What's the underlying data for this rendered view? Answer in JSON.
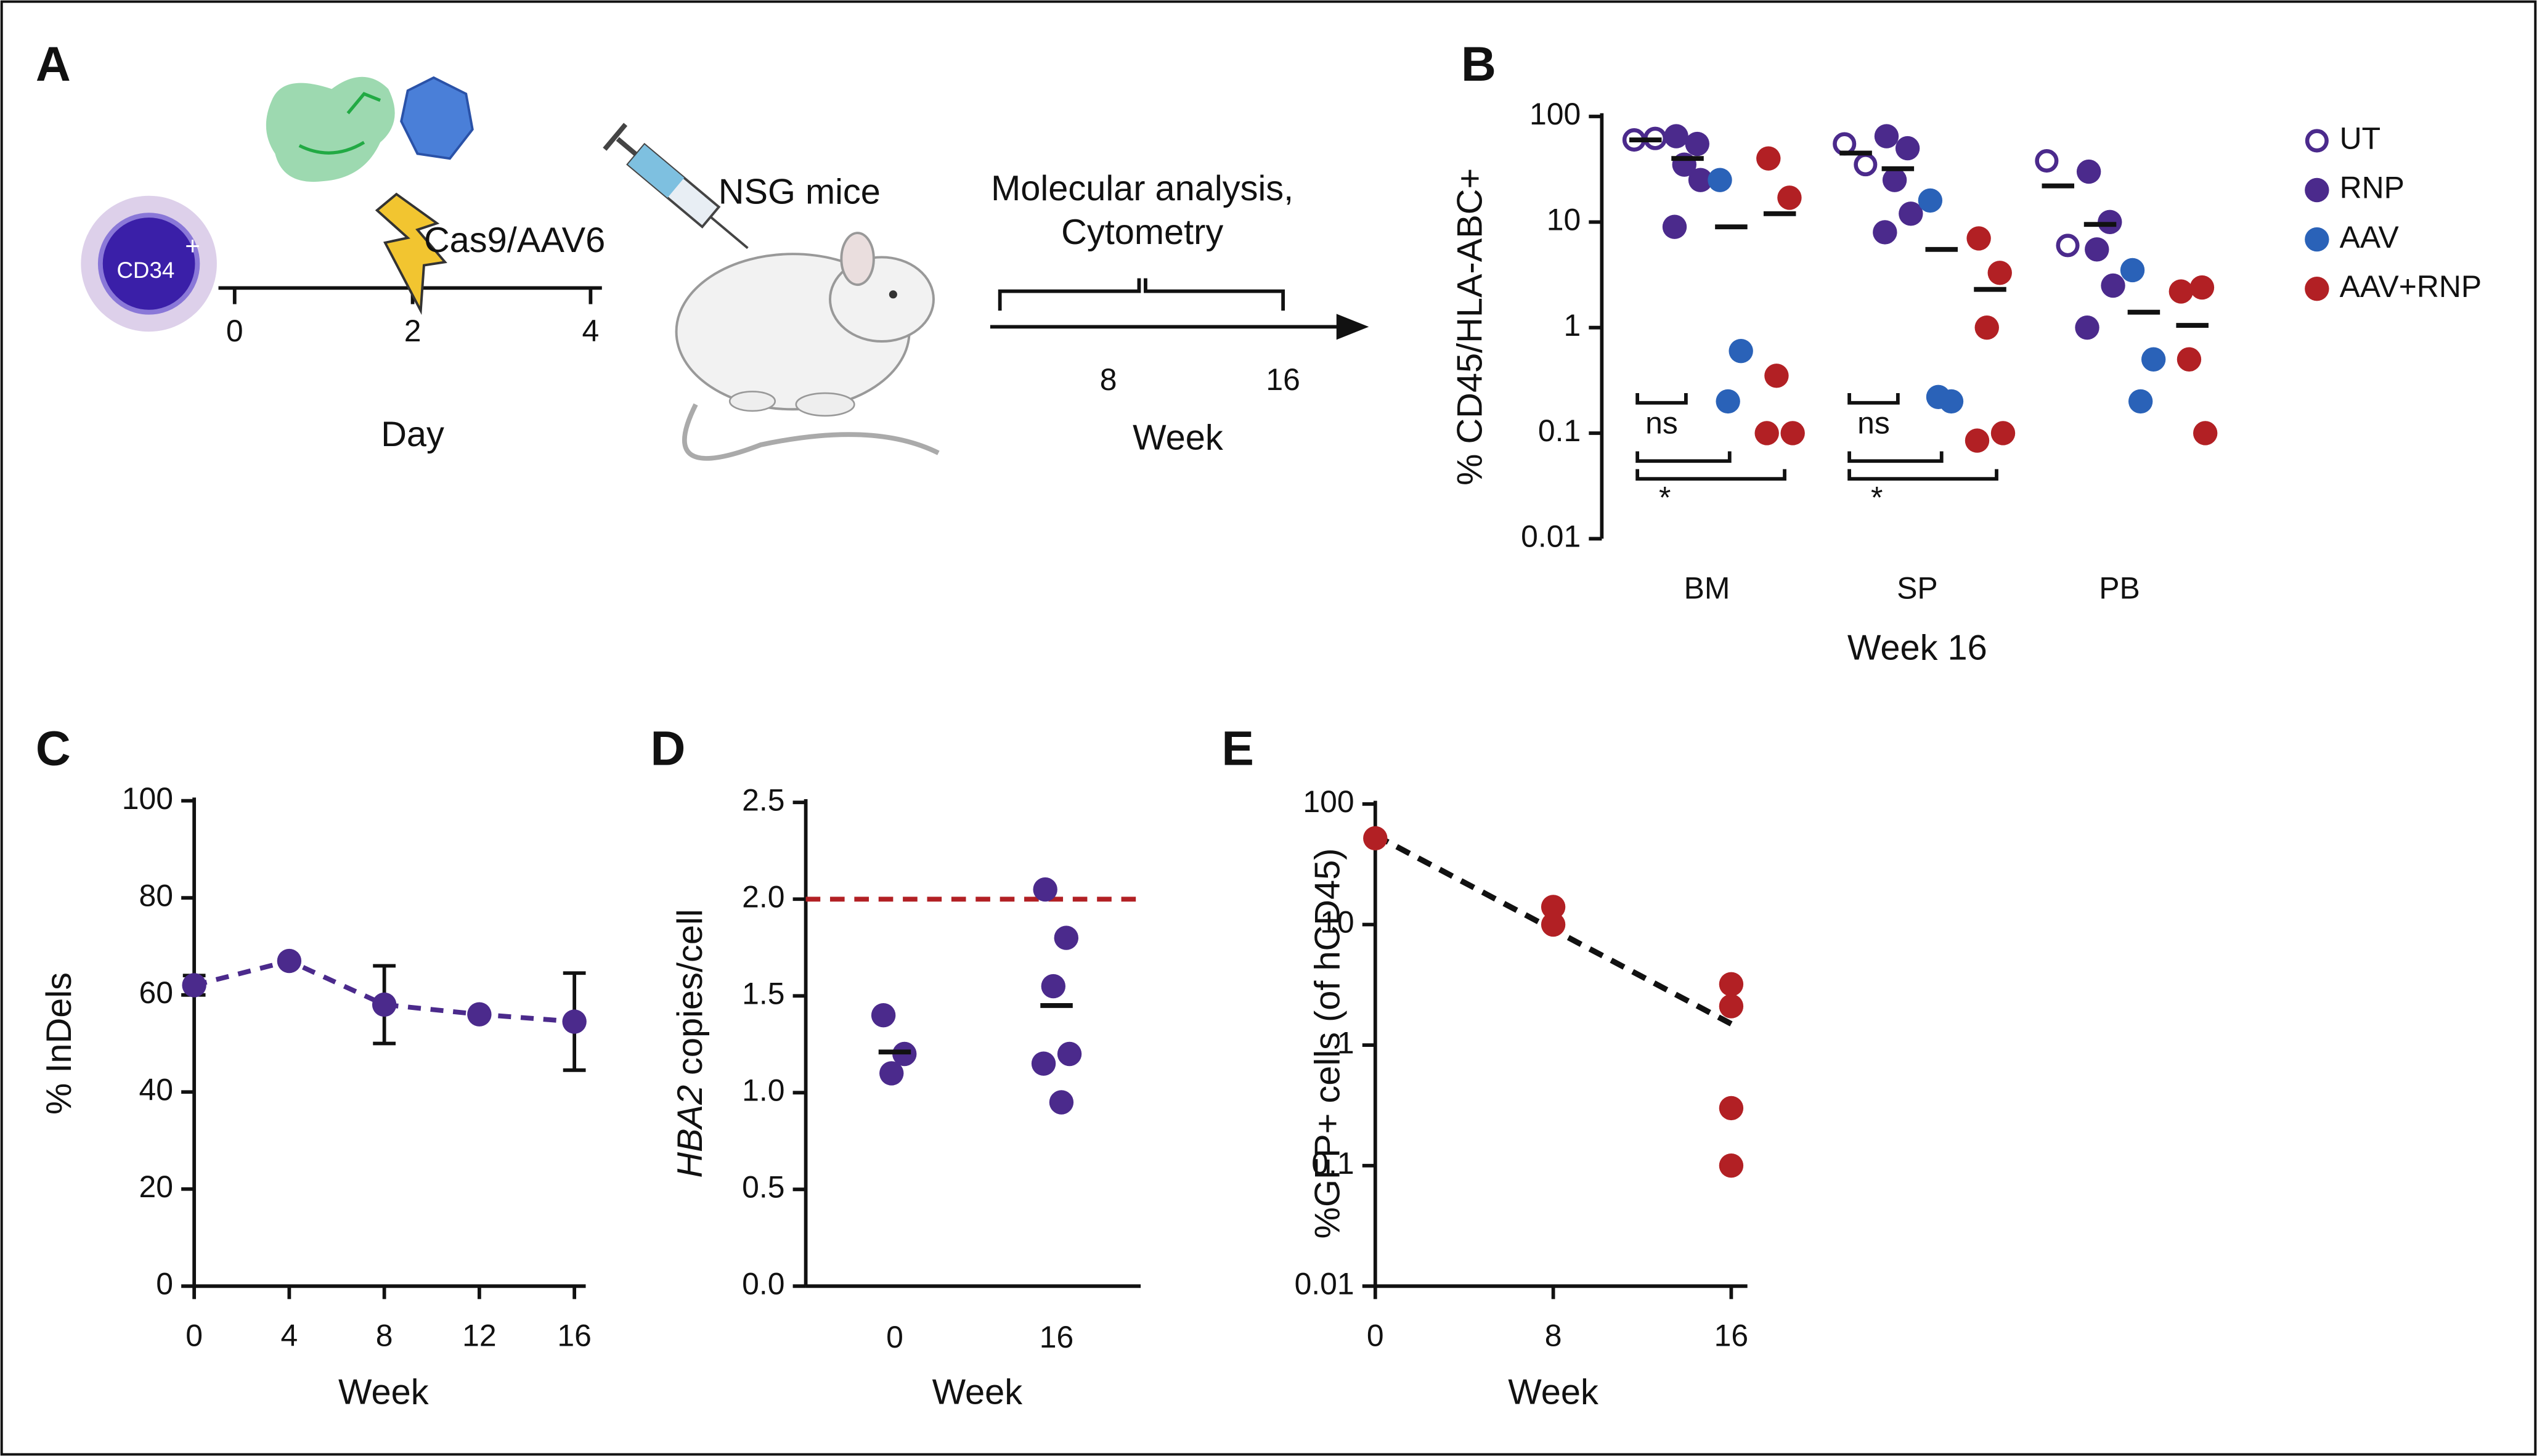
{
  "panel_a": {
    "label": "A",
    "cell": "CD34",
    "cell_sup": "+",
    "treatment": "Cas9/AAV6",
    "model": "NSG mice",
    "analysis": [
      "Molecular analysis,",
      "Cytometry"
    ],
    "day_ticks": [
      0,
      2,
      4
    ],
    "day_label": "Day",
    "week_ticks": [
      8,
      16
    ],
    "week_label": "Week"
  },
  "chart_data": [
    {
      "panel": "B",
      "type": "strip",
      "categories": [
        "BM",
        "SP",
        "PB"
      ],
      "xlabel": "Week 16",
      "ylabel": "% CD45/HLA-ABC+",
      "log": true,
      "ylim": [
        0.01,
        100
      ],
      "yticks": [
        0.01,
        0.1,
        1,
        10,
        100
      ],
      "legend": "right",
      "series": [
        {
          "name": "UT",
          "color": "#4b2a8c",
          "marker": "open",
          "values": [
            [
              60,
              62
            ],
            [
              55,
              35
            ],
            [
              38,
              6
            ]
          ],
          "means": [
            60,
            45,
            22
          ]
        },
        {
          "name": "RNP",
          "color": "#4b2a8c",
          "marker": "filled",
          "values": [
            [
              65,
              55,
              35,
              25,
              9
            ],
            [
              65,
              50,
              25,
              12,
              8
            ],
            [
              30,
              10,
              5.5,
              2.5,
              1
            ]
          ],
          "means": [
            40,
            32,
            9.5
          ]
        },
        {
          "name": "AAV",
          "color": "#2a62b8",
          "marker": "filled",
          "values": [
            [
              25,
              0.6,
              0.2
            ],
            [
              16,
              0.2,
              0.22
            ],
            [
              3.5,
              0.5,
              0.2
            ]
          ],
          "means": [
            9,
            5.5,
            1.4
          ]
        },
        {
          "name": "AAV+RNP",
          "color": "#b22024",
          "marker": "filled",
          "values": [
            [
              40,
              17,
              0.35,
              0.1,
              0.1
            ],
            [
              7,
              3.3,
              1,
              0.1,
              0.085
            ],
            [
              2.2,
              2.4,
              0.5,
              0.1
            ]
          ],
          "means": [
            12,
            2.3,
            1.05
          ]
        }
      ],
      "annotations": [
        "ns",
        "*",
        "ns",
        "*"
      ]
    },
    {
      "panel": "C",
      "type": "line",
      "x": [
        0,
        4,
        8,
        12,
        16
      ],
      "values": [
        62,
        67,
        58,
        56,
        54.5
      ],
      "errors": [
        2,
        null,
        8,
        null,
        10
      ],
      "color": "#4b2a8c",
      "line_style": "dashed",
      "xlim": [
        0,
        16
      ],
      "xticks": [
        0,
        4,
        8,
        12,
        16
      ],
      "ylim": [
        0,
        100
      ],
      "yticks": [
        0,
        20,
        40,
        60,
        80,
        100
      ],
      "xlabel": "Week",
      "ylabel": "% InDels"
    },
    {
      "panel": "D",
      "type": "strip",
      "categories": [
        "0",
        "16"
      ],
      "series": [
        {
          "color": "#4b2a8c",
          "marker": "filled",
          "values": [
            [
              1.4,
              1.2,
              1.1
            ],
            [
              2.05,
              1.8,
              1.55,
              1.2,
              1.15,
              0.95
            ]
          ],
          "means": [
            1.21,
            1.45
          ]
        }
      ],
      "reference": 2.0,
      "reference_color": "#b22024",
      "ylim": [
        0,
        2.5
      ],
      "yticks": [
        {
          "value": 0,
          "label": "0.0"
        },
        0.5,
        {
          "value": 1,
          "label": "1.0"
        },
        1.5,
        {
          "value": 2,
          "label": "2.0"
        },
        2.5
      ],
      "xlabel": "Week",
      "ylabel_gene": "HBA2",
      "ylabel": "copies/cell"
    },
    {
      "panel": "E",
      "type": "scatter",
      "x": [
        0,
        8,
        8,
        16,
        16,
        16,
        16
      ],
      "values": [
        52,
        14,
        10,
        3.2,
        2.1,
        0.3,
        0.1
      ],
      "color": "#b22024",
      "trend": {
        "x": [
          0,
          16
        ],
        "values": [
          55,
          1.5
        ],
        "color": "#111111"
      },
      "log": true,
      "xlim": [
        0,
        16
      ],
      "xticks": [
        0,
        8,
        16
      ],
      "ylim": [
        0.01,
        100
      ],
      "yticks": [
        0.01,
        0.1,
        1,
        10,
        100
      ],
      "xlabel": "Week",
      "ylabel": "%GFP+ cells (of hCD45)"
    }
  ]
}
